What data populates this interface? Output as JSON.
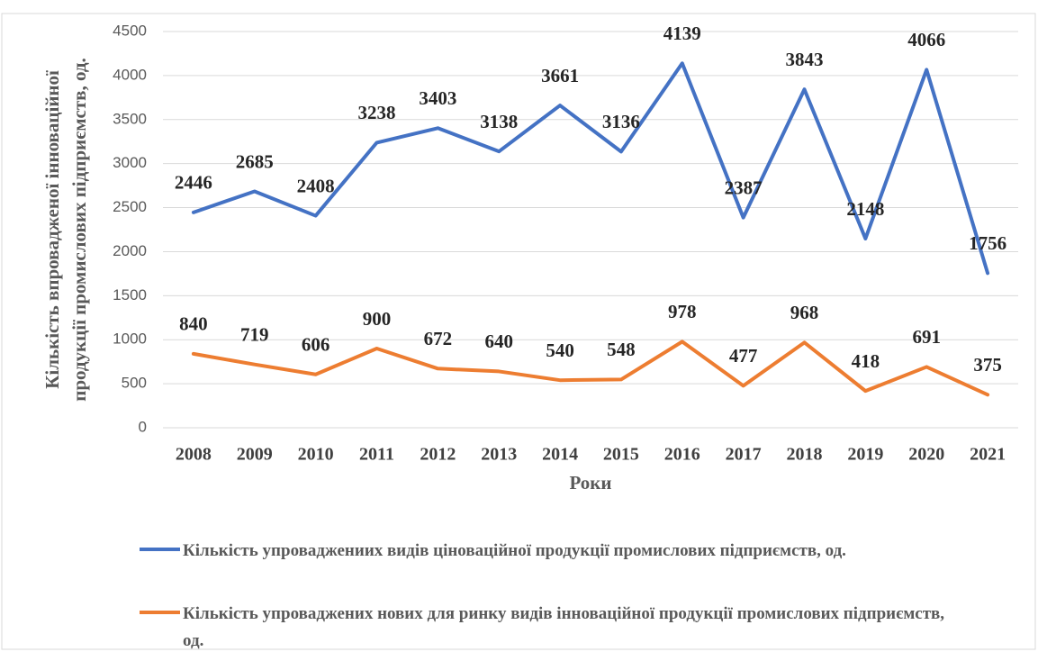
{
  "chart_data": {
    "type": "line",
    "categories": [
      "2008",
      "2009",
      "2010",
      "2011",
      "2012",
      "2013",
      "2014",
      "2015",
      "2016",
      "2017",
      "2018",
      "2019",
      "2020",
      "2021"
    ],
    "series": [
      {
        "name": "Кількість упроваджениих видів ціноваційної продукції промислових підприємств, од.",
        "color": "#4472c4",
        "values": [
          2446,
          2685,
          2408,
          3238,
          3403,
          3138,
          3661,
          3136,
          4139,
          2387,
          3843,
          2148,
          4066,
          1756
        ]
      },
      {
        "name": "Кількість упроваджених нових для ринку видів інноваційної продукції промислових підприємств, од.",
        "color": "#ed7d31",
        "values": [
          840,
          719,
          606,
          900,
          672,
          640,
          540,
          548,
          978,
          477,
          968,
          418,
          691,
          375
        ]
      }
    ],
    "y_label": [
      "Кількість впровадженої інноваційної",
      "продукції промислових підприємств, од."
    ],
    "x_label": "Роки",
    "ylim": [
      0,
      4500
    ],
    "yticks": [
      0,
      500,
      1000,
      1500,
      2000,
      2500,
      3000,
      3500,
      4000,
      4500
    ],
    "grid": true
  }
}
